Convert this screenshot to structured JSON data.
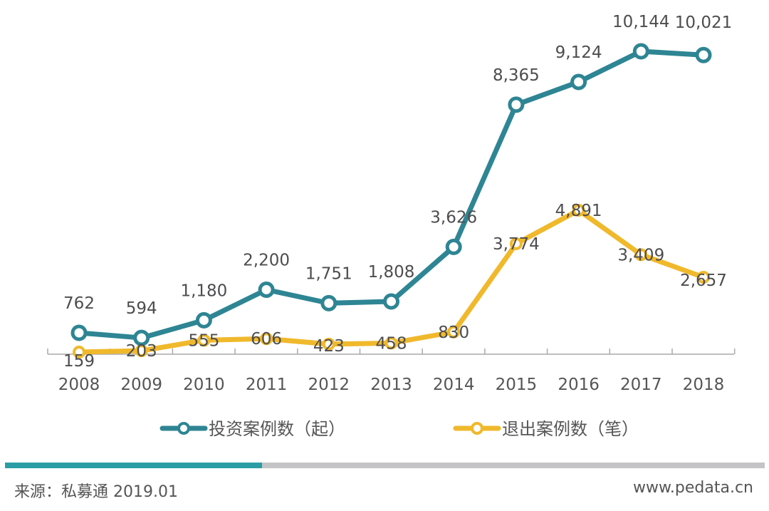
{
  "chart_data": {
    "type": "line",
    "title": "",
    "xlabel": "",
    "ylabel": "",
    "categories": [
      "2008",
      "2009",
      "2010",
      "2011",
      "2012",
      "2013",
      "2014",
      "2015",
      "2016",
      "2017",
      "2018"
    ],
    "series": [
      {
        "name": "投资案例数（起）",
        "color": "#2e8593",
        "values": [
          762,
          594,
          1180,
          2200,
          1751,
          1808,
          3626,
          8365,
          9124,
          10144,
          10021
        ],
        "labels": [
          "762",
          "594",
          "1,180",
          "2,200",
          "1,751",
          "1,808",
          "3,626",
          "8,365",
          "9,124",
          "10,144",
          "10,021"
        ]
      },
      {
        "name": "退出案例数（笔）",
        "color": "#f0b92c",
        "values": [
          159,
          203,
          555,
          606,
          423,
          458,
          830,
          3774,
          4891,
          3409,
          2657
        ],
        "labels": [
          "159",
          "203",
          "555",
          "606",
          "423",
          "458",
          "830",
          "3,774",
          "4,891",
          "3,409",
          "2,657"
        ]
      }
    ],
    "grid": false,
    "legend": "bottom",
    "y_axis_visible": false
  },
  "footer": {
    "source": "来源：私募通 2019.01",
    "website": "www.pedata.cn"
  }
}
